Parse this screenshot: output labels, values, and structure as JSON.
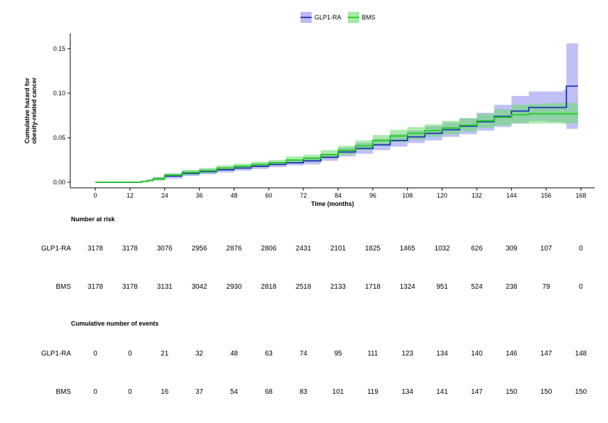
{
  "chart_data": {
    "type": "line",
    "title": "",
    "xlabel": "Time (months)",
    "ylabel_lines": [
      "Cumulative hazard for",
      "obesity-related cancer"
    ],
    "xlim": [
      0,
      168
    ],
    "ylim": [
      0,
      0.16
    ],
    "x_ticks": [
      "0",
      "12",
      "24",
      "36",
      "48",
      "60",
      "72",
      "84",
      "96",
      "108",
      "120",
      "132",
      "144",
      "156",
      "168"
    ],
    "y_ticks": [
      "0.00",
      "0.05",
      "0.10",
      "0.15"
    ],
    "legend_position": "top-center",
    "grid": false,
    "series": [
      {
        "name": "GLP1-RA",
        "color": "#1f2fb5",
        "band_color": "#8c8cf0",
        "x": [
          0,
          12,
          16,
          18,
          20,
          24,
          30,
          36,
          42,
          48,
          54,
          60,
          66,
          72,
          78,
          84,
          90,
          96,
          102,
          108,
          114,
          120,
          126,
          132,
          138,
          144,
          150,
          156,
          162,
          163,
          167
        ],
        "y": [
          0,
          0,
          0.001,
          0.002,
          0.004,
          0.007,
          0.01,
          0.012,
          0.014,
          0.016,
          0.018,
          0.02,
          0.022,
          0.024,
          0.028,
          0.034,
          0.038,
          0.042,
          0.047,
          0.051,
          0.055,
          0.059,
          0.063,
          0.068,
          0.074,
          0.08,
          0.084,
          0.084,
          0.084,
          0.108,
          0.108
        ],
        "lower": [
          0,
          0,
          0.0005,
          0.001,
          0.002,
          0.004,
          0.007,
          0.009,
          0.011,
          0.013,
          0.015,
          0.017,
          0.019,
          0.02,
          0.024,
          0.029,
          0.032,
          0.036,
          0.04,
          0.044,
          0.047,
          0.051,
          0.054,
          0.058,
          0.062,
          0.066,
          0.069,
          0.068,
          0.066,
          0.06,
          0.06
        ],
        "upper": [
          0,
          0,
          0.0015,
          0.003,
          0.006,
          0.01,
          0.013,
          0.015,
          0.017,
          0.019,
          0.021,
          0.023,
          0.025,
          0.028,
          0.032,
          0.039,
          0.044,
          0.049,
          0.054,
          0.058,
          0.063,
          0.067,
          0.072,
          0.078,
          0.087,
          0.097,
          0.102,
          0.102,
          0.104,
          0.156,
          0.156
        ]
      },
      {
        "name": "BMS",
        "color": "#22cc22",
        "band_color": "#66dd66",
        "x": [
          0,
          12,
          16,
          18,
          20,
          24,
          30,
          36,
          42,
          48,
          54,
          60,
          66,
          72,
          78,
          84,
          90,
          96,
          102,
          108,
          114,
          120,
          126,
          132,
          138,
          144,
          150,
          156,
          162,
          167
        ],
        "y": [
          0,
          0,
          0.001,
          0.002,
          0.004,
          0.008,
          0.011,
          0.013,
          0.016,
          0.018,
          0.02,
          0.022,
          0.025,
          0.027,
          0.031,
          0.036,
          0.041,
          0.047,
          0.052,
          0.055,
          0.058,
          0.061,
          0.064,
          0.069,
          0.073,
          0.076,
          0.077,
          0.077,
          0.077,
          0.077
        ],
        "lower": [
          0,
          0,
          0.0005,
          0.001,
          0.002,
          0.006,
          0.008,
          0.01,
          0.013,
          0.015,
          0.017,
          0.019,
          0.021,
          0.023,
          0.027,
          0.031,
          0.036,
          0.041,
          0.045,
          0.048,
          0.051,
          0.054,
          0.057,
          0.061,
          0.064,
          0.066,
          0.066,
          0.066,
          0.066,
          0.066
        ],
        "upper": [
          0,
          0,
          0.0015,
          0.003,
          0.006,
          0.01,
          0.014,
          0.016,
          0.019,
          0.021,
          0.023,
          0.025,
          0.029,
          0.031,
          0.036,
          0.041,
          0.047,
          0.053,
          0.059,
          0.062,
          0.065,
          0.069,
          0.072,
          0.077,
          0.082,
          0.087,
          0.088,
          0.089,
          0.089,
          0.089
        ]
      }
    ]
  },
  "risk_table": {
    "title": "Number at risk",
    "rows": [
      {
        "label": "GLP1-RA",
        "values": [
          "3178",
          "3178",
          "3076",
          "2956",
          "2876",
          "2806",
          "2431",
          "2101",
          "1825",
          "1465",
          "1032",
          "626",
          "309",
          "107",
          "0"
        ]
      },
      {
        "label": "BMS",
        "values": [
          "3178",
          "3178",
          "3131",
          "3042",
          "2930",
          "2818",
          "2518",
          "2133",
          "1718",
          "1324",
          "951",
          "524",
          "238",
          "79",
          "0"
        ]
      }
    ]
  },
  "events_table": {
    "title": "Cumulative number of events",
    "rows": [
      {
        "label": "GLP1-RA",
        "values": [
          "0",
          "0",
          "21",
          "32",
          "48",
          "63",
          "74",
          "95",
          "111",
          "123",
          "134",
          "140",
          "146",
          "147",
          "148"
        ]
      },
      {
        "label": "BMS",
        "values": [
          "0",
          "0",
          "16",
          "37",
          "54",
          "68",
          "83",
          "101",
          "119",
          "134",
          "141",
          "147",
          "150",
          "150",
          "150"
        ]
      }
    ]
  }
}
